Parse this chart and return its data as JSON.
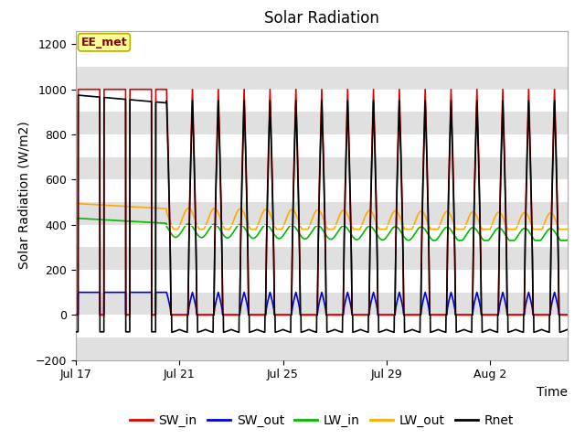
{
  "title": "Solar Radiation",
  "ylabel": "Solar Radiation (W/m2)",
  "xlabel": "Time",
  "ylim": [
    -200,
    1260
  ],
  "yticks": [
    -200,
    0,
    200,
    400,
    600,
    800,
    1000,
    1200
  ],
  "xtick_labels": [
    "Jul 17",
    "Jul 21",
    "Jul 25",
    "Jul 29",
    "Aug 2"
  ],
  "xtick_positions": [
    0,
    4,
    8,
    12,
    16
  ],
  "total_days": 19,
  "colors": {
    "SW_in": "#dd0000",
    "SW_out": "#0000dd",
    "LW_in": "#00bb00",
    "LW_out": "#ffaa00",
    "Rnet": "#000000"
  },
  "annotation_text": "EE_met",
  "annotation_bg": "#ffff99",
  "annotation_border": "#bbaa00",
  "bg_band_color": "#e0e0e0",
  "title_fontsize": 12,
  "label_fontsize": 10,
  "tick_fontsize": 9,
  "legend_fontsize": 10,
  "linewidth": 1.2
}
